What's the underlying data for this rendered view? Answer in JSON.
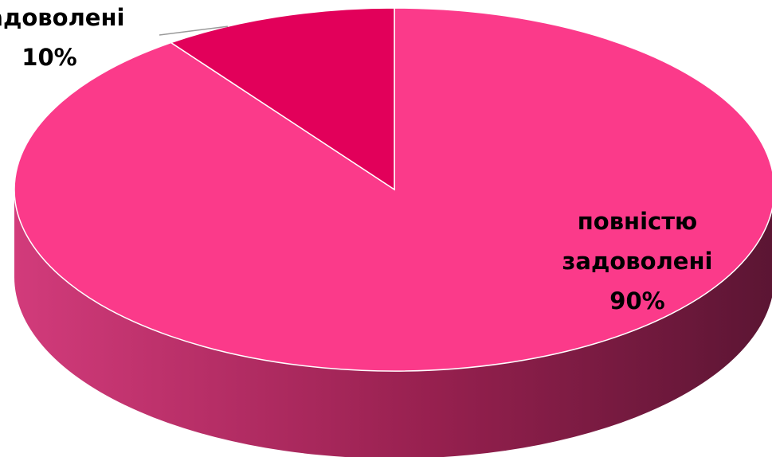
{
  "chart_data": {
    "type": "pie",
    "style": "3d",
    "title": "",
    "slices": [
      {
        "label_lines": [
          "повністю",
          "задоволені"
        ],
        "value": 90,
        "value_label": "90%",
        "color": "#fb3a8a"
      },
      {
        "label_lines": [
          "задоволені"
        ],
        "value": 10,
        "value_label": "10%",
        "color": "#e2005a"
      }
    ]
  }
}
